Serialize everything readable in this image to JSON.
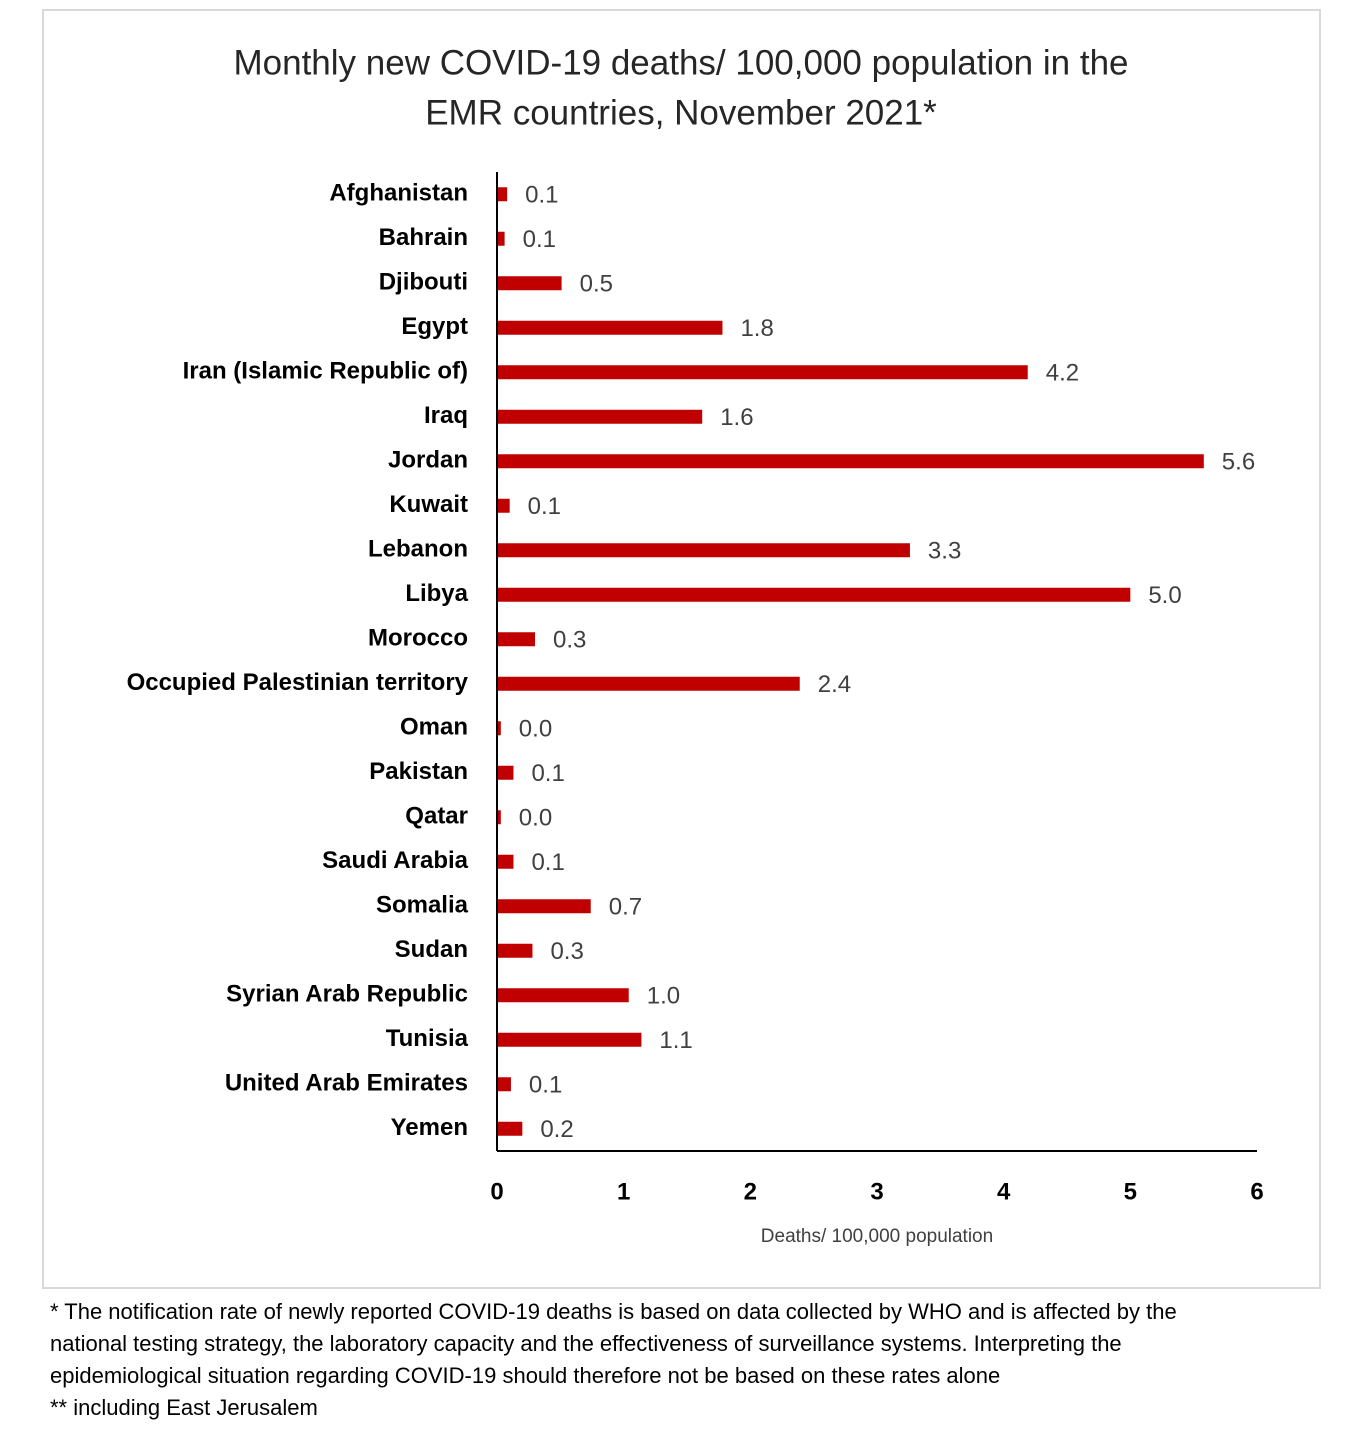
{
  "chart_data": {
    "type": "barh",
    "title": [
      "Monthly new COVID-19 deaths/ 100,000 population in the",
      "EMR countries, November 2021*"
    ],
    "x_label": "Deaths/ 100,000 population",
    "categories": [
      "Afghanistan",
      "Bahrain",
      "Djibouti",
      "Egypt",
      "Iran (Islamic Republic of)",
      "Iraq",
      "Jordan",
      "Kuwait",
      "Lebanon",
      "Libya",
      "Morocco",
      "Occupied Palestinian territory",
      "Oman",
      "Pakistan",
      "Qatar",
      "Saudi Arabia",
      "Somalia",
      "Sudan",
      "Syrian Arab Republic",
      "Tunisia",
      "United Arab Emirates",
      "Yemen"
    ],
    "values": [
      0.08,
      0.06,
      0.51,
      1.78,
      4.19,
      1.62,
      5.58,
      0.1,
      3.26,
      5.0,
      0.3,
      2.39,
      0.03,
      0.13,
      0.03,
      0.13,
      0.74,
      0.28,
      1.04,
      1.14,
      0.11,
      0.2
    ],
    "value_labels": [
      "0.1",
      "0.1",
      "0.5",
      "1.8",
      "4.2",
      "1.6",
      "5.6",
      "0.1",
      "3.3",
      "5.0",
      "0.3",
      "2.4",
      "0.0",
      "0.1",
      "0.0",
      "0.1",
      "0.7",
      "0.3",
      "1.0",
      "1.1",
      "0.1",
      "0.2"
    ],
    "color": "#c00000",
    "xlim": [
      0,
      6
    ],
    "xticks": [
      0,
      1,
      2,
      3,
      4,
      5,
      6
    ],
    "grid": false
  },
  "notes": [
    "* The notification rate of newly reported COVID-19 deaths is based on data collected by WHO and is affected by the",
    "national testing strategy, the laboratory capacity and the effectiveness of surveillance systems. Interpreting the",
    "epidemiological situation regarding COVID-19 should therefore not be based on these rates alone",
    "** including East Jerusalem"
  ]
}
